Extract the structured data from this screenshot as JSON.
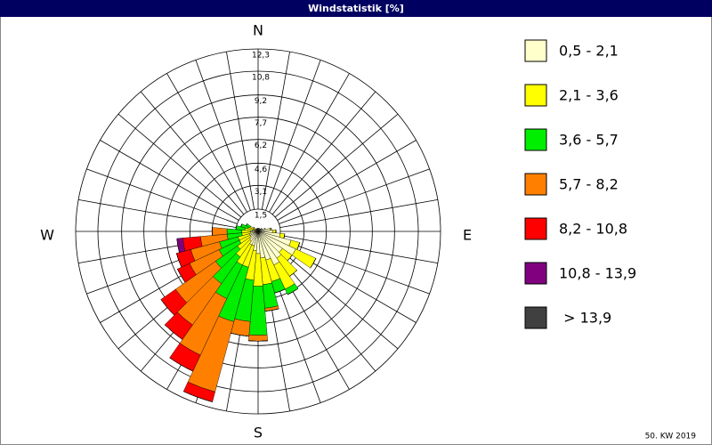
{
  "chart_data": {
    "type": "windrose",
    "title": "Windstatistik [%]",
    "footer": "50. KW 2019",
    "compass": [
      "N",
      "E",
      "S",
      "W"
    ],
    "directions": [
      0,
      10,
      20,
      30,
      40,
      50,
      60,
      70,
      80,
      90,
      100,
      110,
      120,
      130,
      140,
      150,
      160,
      170,
      180,
      190,
      200,
      210,
      220,
      230,
      240,
      250,
      260,
      270,
      280,
      290,
      300,
      310,
      320,
      330,
      340,
      350
    ],
    "rlim": [
      0,
      12.3
    ],
    "rticks": [
      {
        "value": 1.5,
        "label": "1,5"
      },
      {
        "value": 3.1,
        "label": "3,1"
      },
      {
        "value": 4.6,
        "label": "4,6"
      },
      {
        "value": 6.2,
        "label": "6,2"
      },
      {
        "value": 7.7,
        "label": "7,7"
      },
      {
        "value": 9.2,
        "label": "9,2"
      },
      {
        "value": 10.8,
        "label": "10,8"
      },
      {
        "value": 12.3,
        "label": "12,3"
      }
    ],
    "series": [
      {
        "name": "0,5 - 2,1",
        "color": "#ffffcc",
        "values": [
          0.2,
          0.2,
          0.2,
          0.2,
          0.2,
          0.3,
          0.3,
          0.5,
          0.8,
          1.0,
          1.5,
          2.3,
          2.8,
          2.0,
          2.2,
          2.5,
          2.0,
          1.8,
          1.5,
          1.3,
          1.0,
          1.0,
          0.8,
          0.7,
          0.6,
          0.6,
          0.5,
          0.5,
          0.4,
          0.3,
          0.3,
          0.2,
          0.2,
          0.2,
          0.2,
          0.2
        ]
      },
      {
        "name": "2,1 - 3,6",
        "color": "#ffff00",
        "values": [
          0,
          0,
          0,
          0,
          0,
          0,
          0,
          0,
          0.1,
          0.2,
          0.3,
          0.6,
          1.5,
          0.8,
          1.5,
          1.8,
          1.5,
          1.8,
          2.2,
          2.0,
          1.5,
          1.5,
          1.3,
          1.0,
          0.8,
          0.8,
          0.6,
          0.6,
          0.5,
          0.4,
          0.3,
          0.2,
          0,
          0,
          0,
          0
        ]
      },
      {
        "name": "3,6 - 5,7",
        "color": "#00ee00",
        "values": [
          0,
          0,
          0,
          0,
          0,
          0,
          0,
          0,
          0,
          0,
          0,
          0,
          0,
          0,
          0,
          0.4,
          0.8,
          1.6,
          3.3,
          2.8,
          3.8,
          2.5,
          2.2,
          1.8,
          1.5,
          1.3,
          1.0,
          1.0,
          0.6,
          0.5,
          0.3,
          0,
          0,
          0,
          0,
          0
        ]
      },
      {
        "name": "5,7 - 8,2",
        "color": "#ff8000",
        "values": [
          0,
          0,
          0,
          0,
          0,
          0,
          0,
          0,
          0,
          0,
          0,
          0,
          0,
          0,
          0,
          0,
          0,
          0.2,
          0.4,
          1.0,
          4.9,
          4.2,
          3.4,
          3.3,
          2.2,
          2.0,
          1.8,
          1.0,
          0,
          0,
          0,
          0,
          0,
          0,
          0,
          0
        ]
      },
      {
        "name": "8,2 - 10,8",
        "color": "#ff0000",
        "values": [
          0,
          0,
          0,
          0,
          0,
          0,
          0,
          0,
          0,
          0,
          0,
          0,
          0,
          0,
          0,
          0,
          0,
          0,
          0,
          0,
          0.7,
          1.2,
          1.2,
          1.2,
          0.9,
          1.0,
          1.2,
          0,
          0,
          0,
          0,
          0,
          0,
          0,
          0,
          0
        ]
      },
      {
        "name": "10,8 - 13,9",
        "color": "#800080",
        "values": [
          0,
          0,
          0,
          0,
          0,
          0,
          0,
          0,
          0,
          0,
          0,
          0,
          0,
          0,
          0,
          0,
          0,
          0,
          0,
          0,
          0,
          0,
          0,
          0,
          0,
          0,
          0.4,
          0,
          0,
          0,
          0,
          0,
          0,
          0,
          0,
          0
        ]
      },
      {
        "name": " > 13,9",
        "color": "#404040",
        "values": [
          0,
          0,
          0,
          0,
          0,
          0,
          0,
          0,
          0,
          0,
          0,
          0,
          0,
          0,
          0,
          0,
          0,
          0,
          0,
          0,
          0,
          0,
          0,
          0,
          0,
          0,
          0,
          0,
          0,
          0,
          0,
          0,
          0,
          0,
          0,
          0
        ]
      }
    ]
  }
}
